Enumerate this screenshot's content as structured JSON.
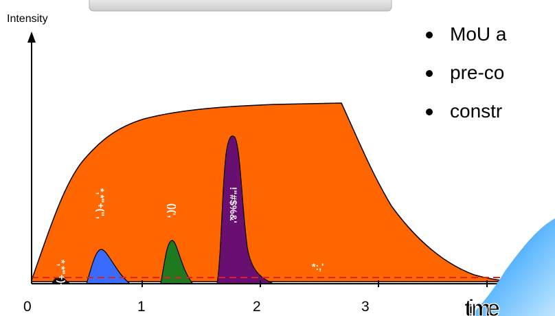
{
  "diagram": {
    "y_axis_label": "Intensity",
    "x_ticks": [
      "0",
      "1",
      "2",
      "3"
    ],
    "peak_labels": [
      "*,*\"+)-",
      "*,*\"+(\",",
      "()(',",
      "!\"#$%&'",
      "*:,'"
    ],
    "corner_text": "time"
  },
  "bullets": [
    "MoU a",
    "pre-co",
    "constr"
  ],
  "colors": {
    "background_curve": "#ff6600",
    "peak_small": "#111111",
    "peak_blue": "#3a6bff",
    "peak_green": "#1f7a1f",
    "peak_purple": "#6a0f72",
    "threshold_line": "#e02020"
  }
}
